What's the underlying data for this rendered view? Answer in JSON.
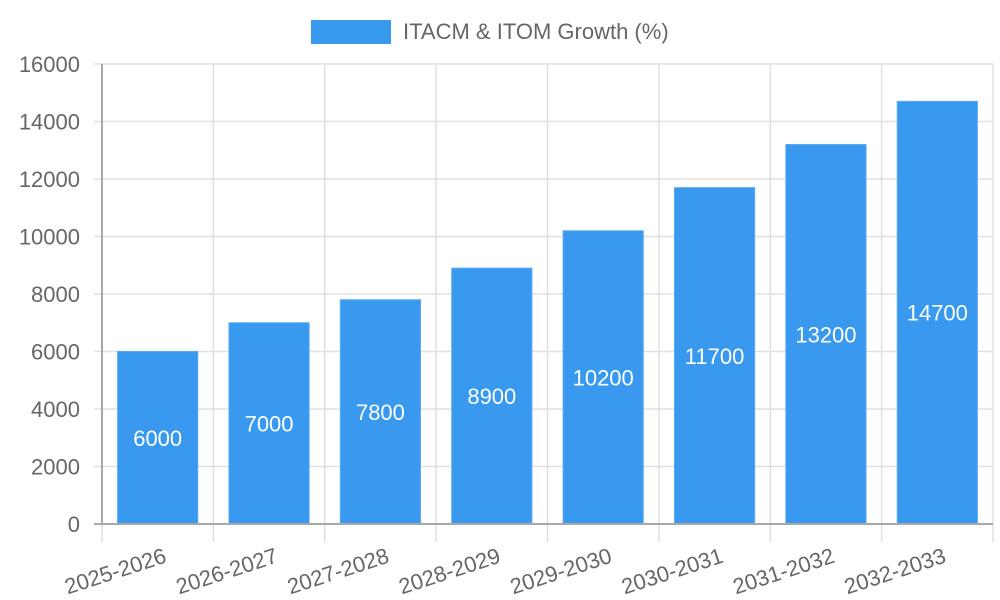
{
  "legend": {
    "label": "ITACM & ITOM Growth (%)",
    "color": "#3899ee"
  },
  "chart_data": {
    "type": "bar",
    "title": "",
    "xlabel": "",
    "ylabel": "",
    "categories": [
      "2025-2026",
      "2026-2027",
      "2027-2028",
      "2028-2029",
      "2029-2030",
      "2030-2031",
      "2031-2032",
      "2032-2033"
    ],
    "series": [
      {
        "name": "ITACM & ITOM Growth (%)",
        "values": [
          6000,
          7000,
          7800,
          8900,
          10200,
          11700,
          13200,
          14700
        ],
        "color": "#3899ee"
      }
    ],
    "ylim": [
      0,
      16000
    ],
    "yticks": [
      0,
      2000,
      4000,
      6000,
      8000,
      10000,
      12000,
      14000,
      16000
    ],
    "grid": true,
    "legend_position": "top",
    "data_labels": true
  }
}
